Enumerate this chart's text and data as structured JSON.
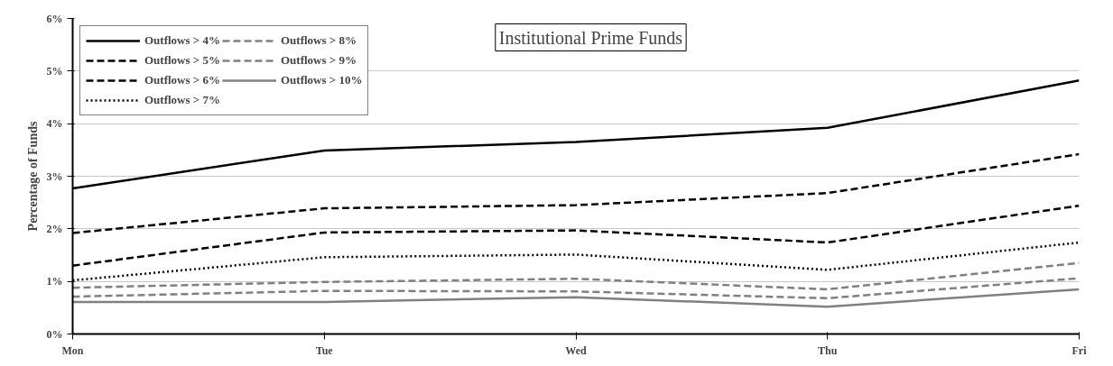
{
  "chart_data": {
    "type": "line",
    "title": "Institutional Prime Funds",
    "ylabel": "Percentage of Funds",
    "categories": [
      "Mon",
      "Tue",
      "Wed",
      "Thu",
      "Fri"
    ],
    "ylim": [
      0,
      6
    ],
    "yticks": [
      {
        "value": 0,
        "label": "0%"
      },
      {
        "value": 1,
        "label": "1%"
      },
      {
        "value": 2,
        "label": "2%"
      },
      {
        "value": 3,
        "label": "3%"
      },
      {
        "value": 4,
        "label": "4%"
      },
      {
        "value": 5,
        "label": "5%"
      },
      {
        "value": 6,
        "label": "6%"
      }
    ],
    "grid": "y",
    "legend": "top left",
    "marker": "none",
    "series": [
      {
        "name": "Outflows > 4%",
        "color": "#000000",
        "line_style": "solid",
        "values": [
          2.77,
          3.49,
          3.65,
          3.92,
          4.82
        ]
      },
      {
        "name": "Outflows > 5%",
        "color": "#000000",
        "line_style": "dashed",
        "values": [
          1.92,
          2.39,
          2.45,
          2.68,
          3.42
        ]
      },
      {
        "name": "Outflows > 6%",
        "color": "#000000",
        "line_style": "dashed",
        "values": [
          1.3,
          1.93,
          1.97,
          1.74,
          2.44
        ]
      },
      {
        "name": "Outflows > 7%",
        "color": "#000000",
        "line_style": "dotted",
        "values": [
          1.02,
          1.46,
          1.51,
          1.22,
          1.74
        ]
      },
      {
        "name": "Outflows > 8%",
        "color": "#808080",
        "line_style": "dashed",
        "values": [
          0.88,
          0.99,
          1.05,
          0.85,
          1.35
        ]
      },
      {
        "name": "Outflows > 9%",
        "color": "#808080",
        "line_style": "dashed",
        "values": [
          0.71,
          0.82,
          0.81,
          0.68,
          1.06
        ]
      },
      {
        "name": "Outflows > 10%",
        "color": "#808080",
        "line_style": "solid",
        "values": [
          0.61,
          0.61,
          0.7,
          0.52,
          0.85
        ]
      }
    ]
  }
}
